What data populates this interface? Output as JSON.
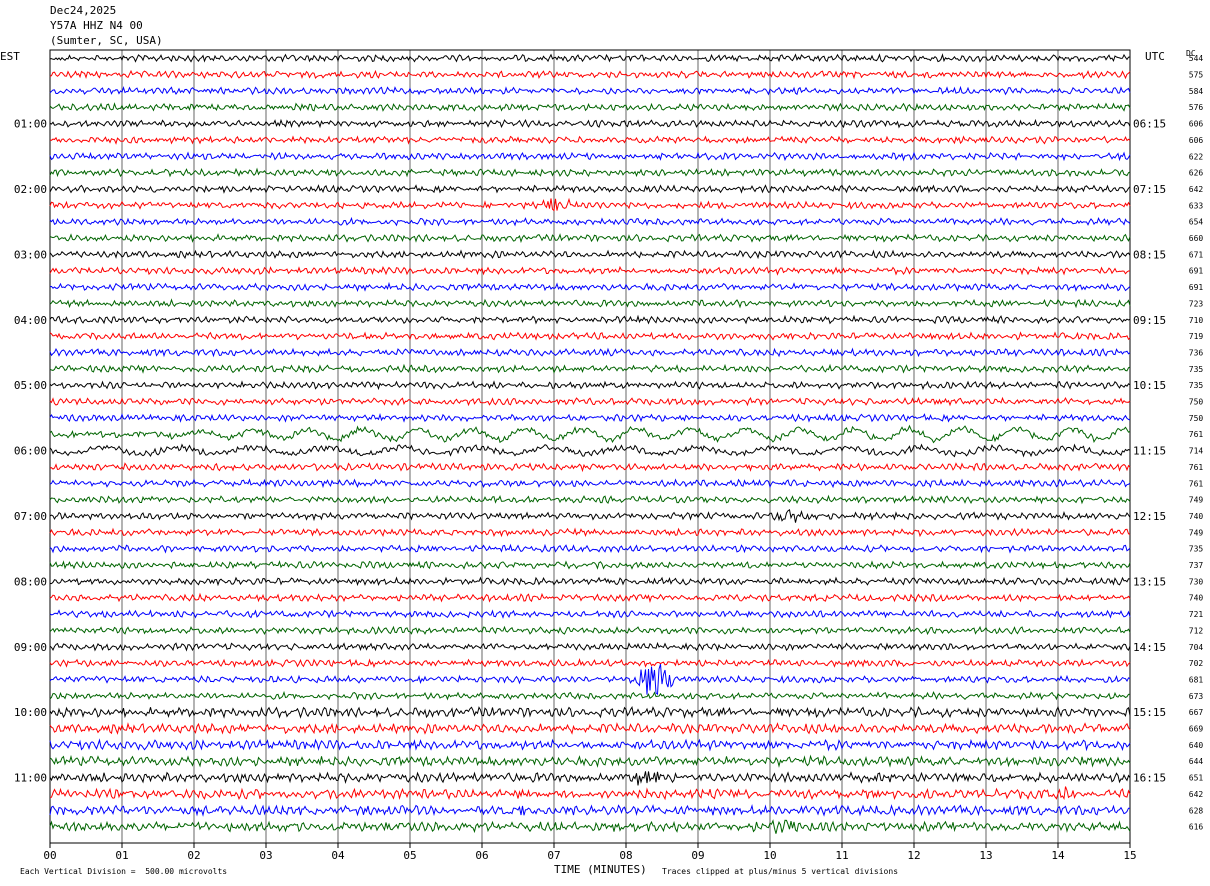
{
  "header": {
    "date": "Dec24,2025",
    "station": "Y57A HHZ N4 00",
    "location": "(Sumter, SC, USA)"
  },
  "left_tz": "EST",
  "right_tz": "UTC",
  "dc_label": "DC",
  "footer": {
    "left": "Each Vertical Division =  500.00 microvolts",
    "center": "TIME (MINUTES)",
    "right": "Traces clipped at plus/minus 5 vertical divisions"
  },
  "colors": {
    "trace": [
      "#000000",
      "#ff0000",
      "#0000ff",
      "#006400"
    ],
    "grid": "#000000"
  },
  "chart_data": {
    "type": "line",
    "title": "Y57A HHZ N4 00",
    "xlabel": "TIME (MINUTES)",
    "x_ticks": [
      "00",
      "01",
      "02",
      "03",
      "04",
      "05",
      "06",
      "07",
      "08",
      "09",
      "10",
      "11",
      "12",
      "13",
      "14",
      "15"
    ],
    "xlim": [
      0,
      15
    ],
    "left_hour_labels": [
      "01:00",
      "02:00",
      "03:00",
      "04:00",
      "05:00",
      "06:00",
      "07:00",
      "08:00",
      "09:00",
      "10:00",
      "11:00"
    ],
    "right_hour_labels": [
      "06:15",
      "07:15",
      "08:15",
      "09:15",
      "10:15",
      "11:15",
      "12:15",
      "13:15",
      "14:15",
      "15:15",
      "16:15"
    ],
    "dc_values": [
      544,
      575,
      584,
      576,
      606,
      606,
      622,
      626,
      642,
      633,
      654,
      660,
      671,
      691,
      691,
      723,
      710,
      719,
      736,
      735,
      735,
      750,
      750,
      761,
      714,
      761,
      761,
      749,
      740,
      749,
      735,
      737,
      730,
      740,
      721,
      712,
      704,
      702,
      681,
      673,
      667,
      669,
      640,
      644,
      651,
      642,
      628,
      616
    ],
    "vertical_division_microvolts": 500.0,
    "rows_per_hour": 4,
    "events": [
      {
        "row": 9,
        "minute": 7.0,
        "label": "burst"
      },
      {
        "row": 28,
        "minute": 10.3,
        "label": "burst"
      },
      {
        "row": 38,
        "minute": 8.4,
        "label": "large burst"
      },
      {
        "row": 44,
        "minute": 8.3,
        "label": "burst"
      },
      {
        "row": 45,
        "minute": 14.1,
        "label": "burst"
      },
      {
        "row": 46,
        "minute": 6.5,
        "label": "burst"
      },
      {
        "row": 47,
        "minute": 10.2,
        "label": "burst"
      }
    ]
  }
}
